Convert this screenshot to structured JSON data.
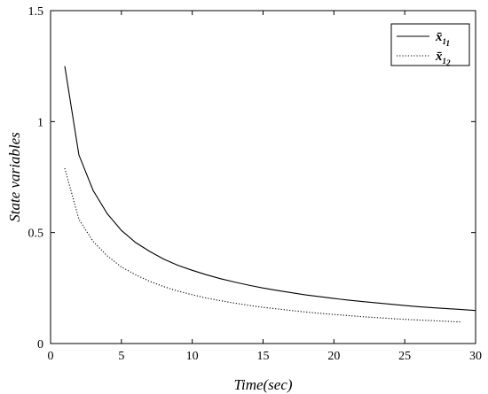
{
  "chart_data": {
    "type": "line",
    "xlabel": "Time(sec)",
    "ylabel": "State variables",
    "xlim": [
      0,
      30
    ],
    "ylim": [
      0,
      1.5
    ],
    "xticks": [
      "0",
      "5",
      "10",
      "15",
      "20",
      "25",
      "30"
    ],
    "yticks": [
      "0",
      "0.5",
      "1",
      "1.5"
    ],
    "grid": false,
    "legend_position": "top-right",
    "series": [
      {
        "name": "x̄",
        "subscript": "1",
        "subsubscript": "1",
        "style": "solid",
        "color": "#000000",
        "x": [
          1,
          2,
          3,
          4,
          5,
          6,
          7,
          8,
          9,
          10,
          11,
          12,
          13,
          14,
          15,
          16,
          17,
          18,
          19,
          20,
          21,
          22,
          23,
          24,
          25,
          26,
          27,
          28,
          29,
          30
        ],
        "y": [
          1.25,
          0.85,
          0.69,
          0.585,
          0.51,
          0.455,
          0.415,
          0.38,
          0.352,
          0.33,
          0.31,
          0.292,
          0.277,
          0.263,
          0.25,
          0.239,
          0.229,
          0.219,
          0.211,
          0.203,
          0.196,
          0.189,
          0.183,
          0.177,
          0.171,
          0.166,
          0.161,
          0.157,
          0.153,
          0.149
        ]
      },
      {
        "name": "x̄",
        "subscript": "1",
        "subsubscript": "2",
        "style": "dotted",
        "color": "#000000",
        "x": [
          1,
          2,
          3,
          4,
          5,
          6,
          7,
          8,
          9,
          10,
          11,
          12,
          13,
          14,
          15,
          16,
          17,
          18,
          19,
          20,
          21,
          22,
          23,
          24,
          25,
          26,
          27,
          28,
          29
        ],
        "y": [
          0.79,
          0.56,
          0.46,
          0.395,
          0.345,
          0.31,
          0.28,
          0.256,
          0.236,
          0.22,
          0.205,
          0.193,
          0.182,
          0.172,
          0.163,
          0.156,
          0.149,
          0.142,
          0.136,
          0.131,
          0.126,
          0.121,
          0.117,
          0.113,
          0.109,
          0.106,
          0.103,
          0.1,
          0.097
        ]
      }
    ]
  }
}
